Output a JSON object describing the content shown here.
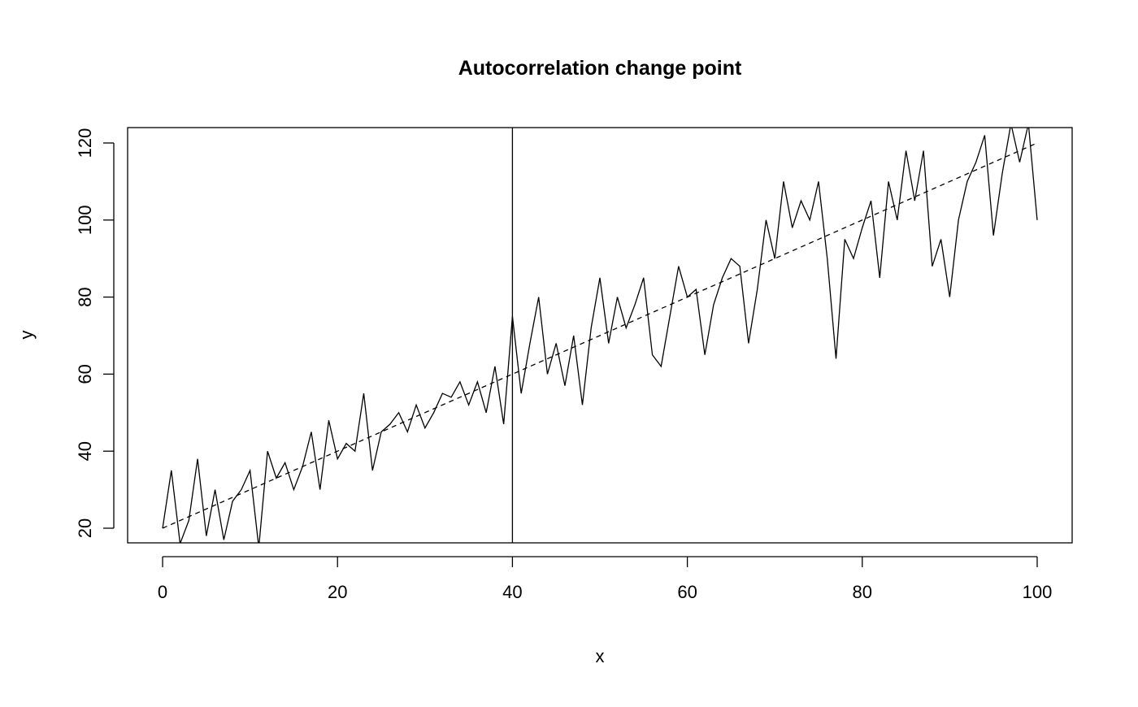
{
  "chart_data": {
    "type": "line",
    "title": "Autocorrelation change point",
    "x_label": "x",
    "y_label": "y",
    "xlim": [
      -4,
      104
    ],
    "ylim": [
      16.2,
      124
    ],
    "xticks": [
      0,
      20,
      40,
      60,
      80,
      100
    ],
    "yticks": [
      20,
      40,
      60,
      80,
      100,
      120
    ],
    "vline": 40,
    "series": [
      {
        "color": "#000000",
        "dash": false,
        "x": [
          0,
          1,
          2,
          3,
          4,
          5,
          6,
          7,
          8,
          9,
          10,
          11,
          12,
          13,
          14,
          15,
          16,
          17,
          18,
          19,
          20,
          21,
          22,
          23,
          24,
          25,
          26,
          27,
          28,
          29,
          30,
          31,
          32,
          33,
          34,
          35,
          36,
          37,
          38,
          39,
          40,
          41,
          42,
          43,
          44,
          45,
          46,
          47,
          48,
          49,
          50,
          51,
          52,
          53,
          54,
          55,
          56,
          57,
          58,
          59,
          60,
          61,
          62,
          63,
          64,
          65,
          66,
          67,
          68,
          69,
          70,
          71,
          72,
          73,
          74,
          75,
          76,
          77,
          78,
          79,
          80,
          81,
          82,
          83,
          84,
          85,
          86,
          87,
          88,
          89,
          90,
          91,
          92,
          93,
          94,
          95,
          96,
          97,
          98,
          99,
          100
        ],
        "values": [
          20,
          35,
          16,
          22,
          38,
          18,
          30,
          17,
          27,
          30,
          35,
          15,
          40,
          33,
          37,
          30,
          36,
          45,
          30,
          48,
          38,
          42,
          40,
          55,
          35,
          45,
          47,
          50,
          45,
          52,
          46,
          50,
          55,
          54,
          58,
          52,
          58,
          50,
          62,
          47,
          75,
          55,
          68,
          80,
          60,
          68,
          57,
          70,
          52,
          72,
          85,
          68,
          80,
          72,
          78,
          85,
          65,
          62,
          75,
          88,
          80,
          82,
          65,
          78,
          85,
          90,
          88,
          68,
          82,
          100,
          90,
          110,
          98,
          105,
          100,
          110,
          90,
          64,
          95,
          90,
          98,
          105,
          85,
          110,
          100,
          118,
          105,
          118,
          88,
          95,
          80,
          100,
          110,
          115,
          122,
          96,
          112,
          125,
          115,
          125,
          100
        ]
      },
      {
        "color": "#000000",
        "dash": true,
        "x": [
          0,
          100
        ],
        "values": [
          20,
          120
        ]
      }
    ]
  }
}
